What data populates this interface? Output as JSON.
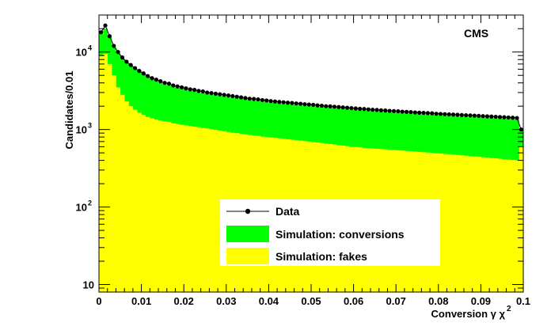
{
  "chart_data": {
    "type": "histogram",
    "x_axis": {
      "label": "Conversion γ χ",
      "label_superscript": "2",
      "range": [
        0,
        0.1
      ],
      "bin_width": 0.001,
      "ticks": [
        0,
        0.01,
        0.02,
        0.03,
        0.04,
        0.05,
        0.06,
        0.07,
        0.08,
        0.09,
        0.1
      ],
      "tick_labels": [
        "0",
        "0.01",
        "0.02",
        "0.03",
        "0.04",
        "0.05",
        "0.06",
        "0.07",
        "0.08",
        "0.09",
        "0.1"
      ]
    },
    "y_axis": {
      "label": "Candidates/0.01",
      "scale": "log",
      "range": [
        8,
        30000
      ],
      "ticks": [
        10,
        100,
        1000,
        10000
      ],
      "tick_base_labels": [
        "10",
        "10",
        "10",
        "10"
      ],
      "tick_exponents": [
        "",
        "2",
        "3",
        "4"
      ]
    },
    "annotation": "CMS",
    "legend": {
      "placement": "bottom-center",
      "entries": [
        {
          "label": "Data",
          "style": "marker-line",
          "color": "#000000"
        },
        {
          "label": "Simulation: conversions",
          "style": "fill",
          "color": "#00ff00"
        },
        {
          "label": "Simulation: fakes",
          "style": "fill",
          "color": "#ffff00"
        }
      ]
    },
    "series": [
      {
        "name": "Data",
        "style": "points",
        "color": "#000000",
        "description": "per-bin counts (0.001 bins) starting at x=0",
        "values": [
          18000,
          22000,
          16000,
          12000,
          10000,
          8500,
          7500,
          6800,
          6200,
          5700,
          5300,
          4900,
          4600,
          4400,
          4200,
          4000,
          3900,
          3700,
          3600,
          3500,
          3400,
          3300,
          3250,
          3150,
          3100,
          3000,
          2950,
          2900,
          2850,
          2800,
          2750,
          2700,
          2650,
          2600,
          2550,
          2500,
          2480,
          2450,
          2400,
          2370,
          2330,
          2300,
          2270,
          2250,
          2220,
          2200,
          2170,
          2150,
          2120,
          2100,
          2080,
          2050,
          2030,
          2000,
          1990,
          1970,
          1950,
          1930,
          1910,
          1890,
          1870,
          1850,
          1840,
          1820,
          1800,
          1790,
          1770,
          1760,
          1740,
          1730,
          1720,
          1700,
          1690,
          1680,
          1660,
          1650,
          1640,
          1630,
          1620,
          1600,
          1590,
          1580,
          1570,
          1560,
          1550,
          1540,
          1530,
          1520,
          1510,
          1500,
          1490,
          1480,
          1470,
          1460,
          1450,
          1440,
          1430,
          1420,
          1410,
          1000
        ]
      },
      {
        "name": "Simulation: conversions",
        "style": "stacked-fill",
        "color": "#00ff00",
        "description": "stack top (fakes + conversions) per 0.001 bin",
        "values": [
          17000,
          20000,
          15500,
          11500,
          9600,
          8200,
          7200,
          6500,
          6000,
          5500,
          5100,
          4700,
          4400,
          4200,
          4000,
          3800,
          3700,
          3550,
          3450,
          3350,
          3250,
          3150,
          3100,
          3000,
          2950,
          2880,
          2820,
          2770,
          2720,
          2670,
          2620,
          2580,
          2540,
          2500,
          2450,
          2400,
          2370,
          2340,
          2300,
          2270,
          2240,
          2210,
          2180,
          2150,
          2120,
          2100,
          2080,
          2050,
          2030,
          2010,
          1990,
          1970,
          1950,
          1930,
          1910,
          1890,
          1870,
          1850,
          1830,
          1810,
          1800,
          1780,
          1760,
          1750,
          1730,
          1720,
          1700,
          1690,
          1670,
          1660,
          1650,
          1630,
          1620,
          1610,
          1600,
          1580,
          1570,
          1560,
          1550,
          1540,
          1530,
          1520,
          1510,
          1500,
          1490,
          1480,
          1470,
          1460,
          1450,
          1440,
          1430,
          1420,
          1410,
          1400,
          1390,
          1380,
          1370,
          1360,
          1350,
          1000
        ]
      },
      {
        "name": "Simulation: fakes",
        "style": "stacked-fill",
        "color": "#ffff00",
        "description": "fakes per 0.001 bin",
        "values": [
          9000,
          9500,
          7000,
          5000,
          3500,
          2800,
          2300,
          2000,
          1800,
          1650,
          1550,
          1450,
          1400,
          1350,
          1300,
          1280,
          1250,
          1200,
          1180,
          1150,
          1130,
          1110,
          1090,
          1070,
          1050,
          1030,
          1010,
          990,
          970,
          950,
          930,
          910,
          900,
          880,
          870,
          850,
          840,
          830,
          810,
          800,
          790,
          780,
          770,
          760,
          750,
          740,
          730,
          720,
          710,
          700,
          690,
          680,
          670,
          660,
          650,
          640,
          630,
          620,
          610,
          600,
          595,
          590,
          580,
          575,
          570,
          565,
          560,
          555,
          550,
          545,
          540,
          535,
          530,
          525,
          520,
          515,
          510,
          505,
          500,
          495,
          490,
          485,
          480,
          475,
          470,
          465,
          460,
          455,
          450,
          445,
          440,
          435,
          430,
          425,
          420,
          415,
          410,
          405,
          400,
          600
        ]
      }
    ]
  }
}
